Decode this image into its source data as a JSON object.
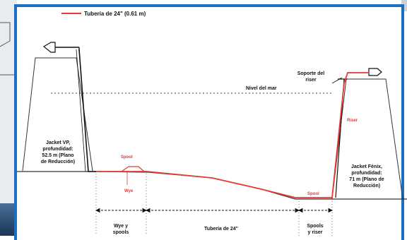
{
  "legend": {
    "label": "Tubería de 24\" (0.61 m)",
    "color": "#e53935"
  },
  "sea_level_label": "Nivel del mar",
  "jackets": {
    "left": {
      "lines": [
        "Jacket VP,",
        "profundidad:",
        "52.5 m (Plano",
        "de Reducción)"
      ]
    },
    "right": {
      "lines": [
        "Jacket Fénix,",
        "profundidad:",
        "71 m (Plano de",
        "Reducción)"
      ]
    }
  },
  "riser_support_label": [
    "Soporte del",
    "riser"
  ],
  "red_labels": {
    "spool_left": "Spool",
    "wye": "Wye",
    "spool_right": "Spool",
    "riser": "Riser"
  },
  "sections": {
    "wye_spools": [
      "Wye y",
      "spools"
    ],
    "pipeline": "Tubería de 24\"",
    "spools_riser": [
      "Spools",
      "y riser"
    ]
  },
  "colors": {
    "frame": "#1b6ec2",
    "pipe": "#e53935",
    "structure": "#111111"
  }
}
